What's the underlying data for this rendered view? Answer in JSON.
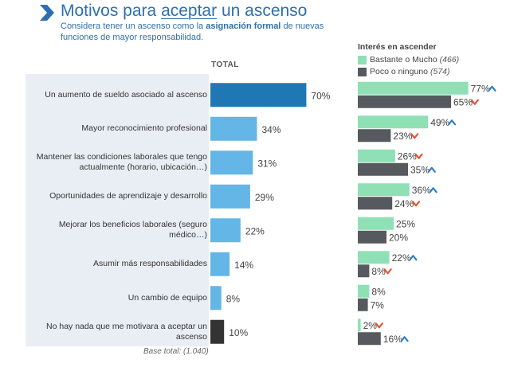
{
  "header": {
    "title_prefix": "Motivos para",
    "title_underlined": "aceptar",
    "title_suffix": "un ascenso",
    "subtitle_pre": "Considera tener un ascenso como la",
    "subtitle_bold": "asignación formal",
    "subtitle_post": "de nuevas funciones de mayor responsabilidad."
  },
  "chart_data": {
    "type": "bar",
    "title": "Motivos para aceptar un ascenso",
    "total_header": "TOTAL",
    "interest_title": "Interés en ascender",
    "base_note": "Base total: (1.040)",
    "categories": [
      "Un aumento de sueldo asociado al ascenso",
      "Mayor reconocimiento profesional",
      "Mantener las condiciones laborales que tengo actualmente (horario, ubicación…)",
      "Oportunidades de aprendizaje y desarrollo",
      "Mejorar los beneficios laborales (seguro médico…)",
      "Asumir más responsabilidades",
      "Un cambio de equipo",
      "No hay nada que me motivara a aceptar un ascenso"
    ],
    "total": {
      "values": [
        70,
        34,
        31,
        29,
        22,
        14,
        8,
        10
      ],
      "labels": [
        "70%",
        "34%",
        "31%",
        "29%",
        "22%",
        "14%",
        "8%",
        "10%"
      ],
      "colors": [
        "#1f78b4",
        "#63b6e6",
        "#63b6e6",
        "#63b6e6",
        "#63b6e6",
        "#63b6e6",
        "#63b6e6",
        "#333333"
      ]
    },
    "series": [
      {
        "name": "Bastante o Mucho",
        "base": "(466)",
        "color": "#8fe0b5",
        "values": [
          77,
          49,
          26,
          36,
          25,
          22,
          8,
          2
        ],
        "labels": [
          "77%",
          "49%",
          "26%",
          "36%",
          "25%",
          "22%",
          "8%",
          "2%"
        ],
        "signif": [
          "up",
          "up",
          "down",
          "up",
          "",
          "up",
          "",
          "down"
        ]
      },
      {
        "name": "Poco o ninguno",
        "base": "(574)",
        "color": "#565a5e",
        "values": [
          65,
          23,
          35,
          24,
          20,
          8,
          7,
          16
        ],
        "labels": [
          "65%",
          "23%",
          "35%",
          "24%",
          "20%",
          "8%",
          "7%",
          "16%"
        ],
        "signif": [
          "down",
          "down",
          "up",
          "down",
          "",
          "down",
          "",
          "up"
        ]
      }
    ],
    "signif_colors": {
      "up": "#2e7bc0",
      "down": "#e8502f"
    }
  }
}
